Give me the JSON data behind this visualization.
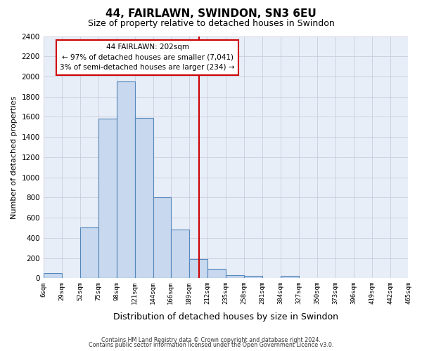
{
  "title": "44, FAIRLAWN, SWINDON, SN3 6EU",
  "subtitle": "Size of property relative to detached houses in Swindon",
  "xlabel": "Distribution of detached houses by size in Swindon",
  "ylabel": "Number of detached properties",
  "bin_edges": [
    6,
    29,
    52,
    75,
    98,
    121,
    144,
    166,
    189,
    212,
    235,
    258,
    281,
    304,
    327,
    350,
    373,
    396,
    419,
    442,
    465
  ],
  "bar_heights": [
    50,
    0,
    500,
    1580,
    1950,
    1590,
    800,
    480,
    190,
    90,
    30,
    25,
    0,
    20,
    0,
    0,
    0,
    0,
    0,
    0
  ],
  "bar_color": "#c8d8ee",
  "bar_edge_color": "#5588bb",
  "vline_x": 202,
  "vline_color": "#cc0000",
  "ylim": [
    0,
    2400
  ],
  "yticks": [
    0,
    200,
    400,
    600,
    800,
    1000,
    1200,
    1400,
    1600,
    1800,
    2000,
    2200,
    2400
  ],
  "xtick_labels": [
    "6sqm",
    "29sqm",
    "52sqm",
    "75sqm",
    "98sqm",
    "121sqm",
    "144sqm",
    "166sqm",
    "189sqm",
    "212sqm",
    "235sqm",
    "258sqm",
    "281sqm",
    "304sqm",
    "327sqm",
    "350sqm",
    "373sqm",
    "396sqm",
    "419sqm",
    "442sqm",
    "465sqm"
  ],
  "annotation_title": "44 FAIRLAWN: 202sqm",
  "annotation_line1": "← 97% of detached houses are smaller (7,041)",
  "annotation_line2": "3% of semi-detached houses are larger (234) →",
  "footnote1": "Contains HM Land Registry data © Crown copyright and database right 2024.",
  "footnote2": "Contains public sector information licensed under the Open Government Licence v3.0.",
  "bg_color": "#ffffff",
  "plot_bg_color": "#e8eef8",
  "grid_color": "#ccccdd",
  "title_fontsize": 11,
  "subtitle_fontsize": 9,
  "ylabel_fontsize": 8,
  "xlabel_fontsize": 9
}
